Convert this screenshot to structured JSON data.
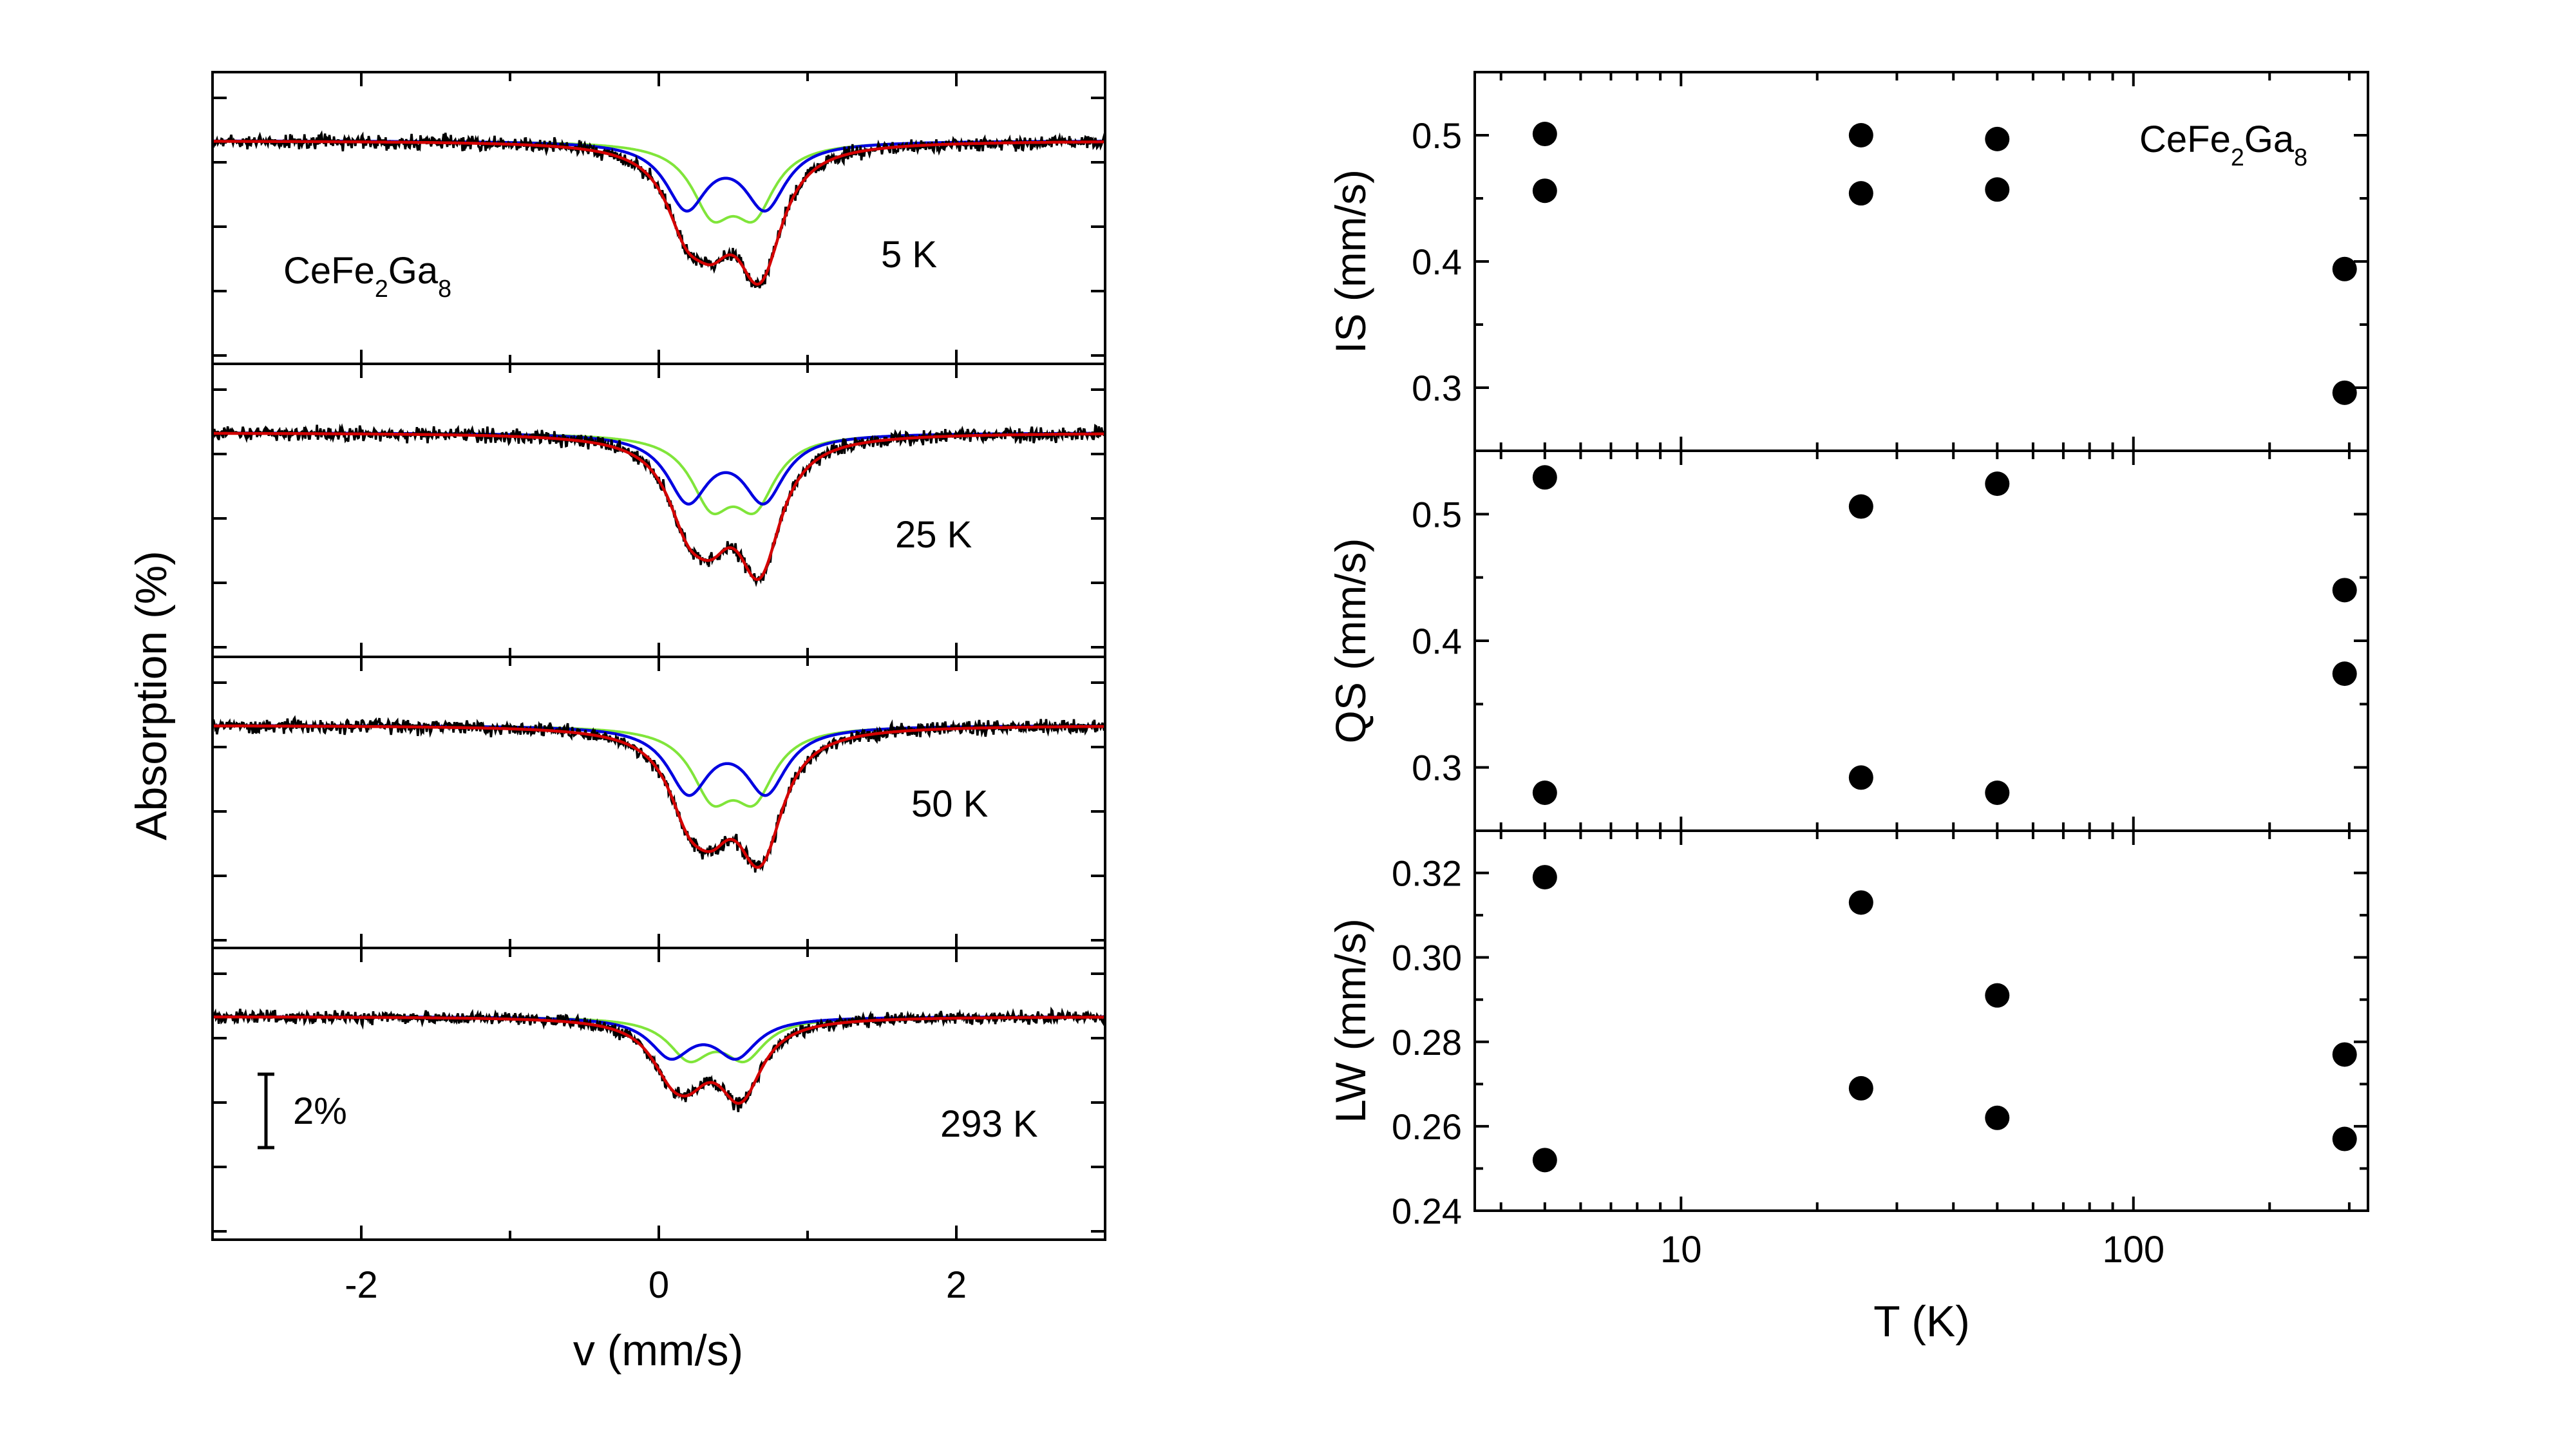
{
  "colors": {
    "data": "#000000",
    "fit_total": "#d40000",
    "doublet_1": "#0000e0",
    "doublet_2": "#80e53a",
    "marker": "#000000"
  },
  "chart_data": [
    {
      "type": "line",
      "title": "",
      "xlabel": "v (mm/s)",
      "ylabel": "Absorption (%)",
      "xlim": [
        -3,
        3
      ],
      "xticks": [
        -2,
        0,
        2
      ],
      "sample_label": {
        "prefix": "CeFe",
        "sub1": "2",
        "mid": "Ga",
        "sub2": "8"
      },
      "scale_bar_label": "2%",
      "series": [
        {
          "name": "experimental data",
          "style": "noisy line",
          "color": "#000000"
        },
        {
          "name": "total fit",
          "color": "#d40000"
        },
        {
          "name": "doublet 1 (outer)",
          "color": "#0000e0"
        },
        {
          "name": "doublet 2 (inner)",
          "color": "#80e53a"
        }
      ],
      "panels": [
        {
          "temperature_label": "5 K",
          "blue": {
            "center": 0.45,
            "split": 0.53,
            "depth": 0.74
          },
          "green": {
            "center": 0.5,
            "split": 0.28,
            "depth": 0.73
          },
          "noise": 0.045
        },
        {
          "temperature_label": "25 K",
          "blue": {
            "center": 0.45,
            "split": 0.51,
            "depth": 0.74
          },
          "green": {
            "center": 0.5,
            "split": 0.29,
            "depth": 0.73
          },
          "noise": 0.045
        },
        {
          "temperature_label": "50 K",
          "blue": {
            "center": 0.46,
            "split": 0.52,
            "depth": 0.73
          },
          "green": {
            "center": 0.5,
            "split": 0.28,
            "depth": 0.72
          },
          "noise": 0.045
        },
        {
          "temperature_label": "293 K",
          "blue": {
            "center": 0.3,
            "split": 0.44,
            "depth": 0.46
          },
          "green": {
            "center": 0.39,
            "split": 0.37,
            "depth": 0.47
          },
          "noise": 0.045
        }
      ]
    },
    {
      "type": "scatter",
      "xlabel": "T (K)",
      "xscale": "log",
      "xlim": [
        3.5,
        330
      ],
      "xticks": [
        10,
        100
      ],
      "sample_label": {
        "prefix": "CeFe",
        "sub1": "2",
        "mid": "Ga",
        "sub2": "8"
      },
      "panels": [
        {
          "ylabel": "IS (mm/s)",
          "ylim": [
            0.25,
            0.55
          ],
          "yticks": [
            "0.3",
            "0.4",
            "0.5"
          ],
          "points": [
            {
              "x": 5,
              "y": 0.501
            },
            {
              "x": 5,
              "y": 0.456
            },
            {
              "x": 25,
              "y": 0.5
            },
            {
              "x": 25,
              "y": 0.454
            },
            {
              "x": 50,
              "y": 0.497
            },
            {
              "x": 50,
              "y": 0.457
            },
            {
              "x": 293,
              "y": 0.394
            },
            {
              "x": 293,
              "y": 0.296
            }
          ]
        },
        {
          "ylabel": "QS (mm/s)",
          "ylim": [
            0.25,
            0.55
          ],
          "yticks": [
            "0.3",
            "0.4",
            "0.5"
          ],
          "points": [
            {
              "x": 5,
              "y": 0.529
            },
            {
              "x": 5,
              "y": 0.28
            },
            {
              "x": 25,
              "y": 0.506
            },
            {
              "x": 25,
              "y": 0.292
            },
            {
              "x": 50,
              "y": 0.524
            },
            {
              "x": 50,
              "y": 0.28
            },
            {
              "x": 293,
              "y": 0.44
            },
            {
              "x": 293,
              "y": 0.374
            }
          ]
        },
        {
          "ylabel": "LW (mm/s)",
          "ylim": [
            0.24,
            0.33
          ],
          "yticks": [
            "0.24",
            "0.26",
            "0.28",
            "0.30",
            "0.32"
          ],
          "points": [
            {
              "x": 5,
              "y": 0.319
            },
            {
              "x": 5,
              "y": 0.252
            },
            {
              "x": 25,
              "y": 0.313
            },
            {
              "x": 25,
              "y": 0.269
            },
            {
              "x": 50,
              "y": 0.291
            },
            {
              "x": 50,
              "y": 0.262
            },
            {
              "x": 293,
              "y": 0.277
            },
            {
              "x": 293,
              "y": 0.257
            }
          ]
        }
      ]
    }
  ]
}
